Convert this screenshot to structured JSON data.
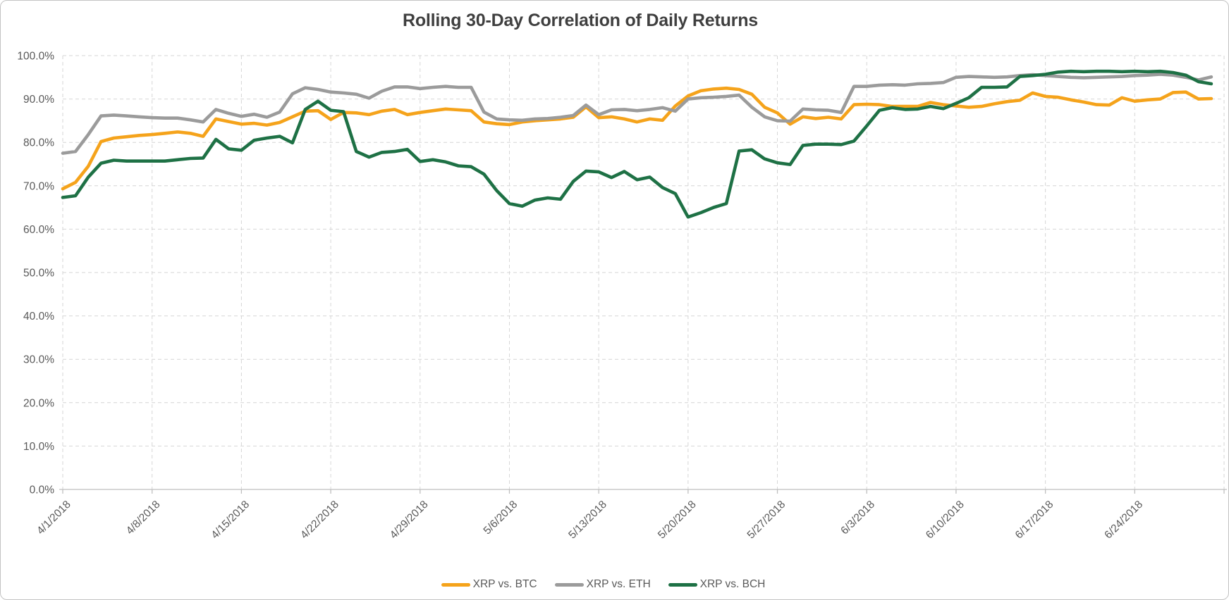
{
  "chart": {
    "title": "Rolling 30-Day Correlation of Daily Returns"
  },
  "chart_data": {
    "type": "line",
    "title": "Rolling 30-Day Correlation of Daily Returns",
    "x_tick_labels": [
      "4/1/2018",
      "4/8/2018",
      "4/15/2018",
      "4/22/2018",
      "4/29/2018",
      "5/6/2018",
      "5/13/2018",
      "5/20/2018",
      "5/27/2018",
      "6/3/2018",
      "6/10/2018",
      "6/17/2018",
      "6/24/2018"
    ],
    "x_range": [
      "4/1/2018",
      "6/30/2018"
    ],
    "x_tick_interval_days": 7,
    "points_per_series": 91,
    "y_tick_labels": [
      "100.0%",
      "90.0%",
      "80.0%",
      "70.0%",
      "60.0%",
      "50.0%",
      "40.0%",
      "30.0%",
      "20.0%",
      "10.0%",
      "0.0%"
    ],
    "ylim": [
      0,
      100
    ],
    "y_unit": "percent",
    "grid": "horizontal and vertical, dashed light gray",
    "legend_position": "bottom-center",
    "axis_text_color": "#595959",
    "gridline_color": "#d6d6d6",
    "axis_line_color": "#bfbfbf",
    "title_color": "#3f3f3f",
    "series": [
      {
        "name": "XRP vs. BTC",
        "color": "#F5A31B",
        "values": [
          69.3,
          70.8,
          74.5,
          80.2,
          81.0,
          81.3,
          81.6,
          81.8,
          82.1,
          82.4,
          82.1,
          81.4,
          85.4,
          84.8,
          84.2,
          84.4,
          84.0,
          84.6,
          85.9,
          87.2,
          87.3,
          85.3,
          86.9,
          86.8,
          86.4,
          87.2,
          87.6,
          86.4,
          86.9,
          87.3,
          87.7,
          87.5,
          87.3,
          84.7,
          84.3,
          84.1,
          84.7,
          85.0,
          85.2,
          85.4,
          85.8,
          88.2,
          85.7,
          85.9,
          85.4,
          84.7,
          85.4,
          85.1,
          88.4,
          90.7,
          91.9,
          92.3,
          92.5,
          92.2,
          91.1,
          88.1,
          86.8,
          84.2,
          85.9,
          85.5,
          85.8,
          85.4,
          88.7,
          88.8,
          88.7,
          88.3,
          88.3,
          88.3,
          89.2,
          88.7,
          88.4,
          88.1,
          88.3,
          88.9,
          89.4,
          89.7,
          91.4,
          90.6,
          90.4,
          89.8,
          89.3,
          88.7,
          88.6,
          90.3,
          89.5,
          89.8,
          90.0,
          91.5,
          91.6,
          90.0,
          90.1
        ]
      },
      {
        "name": "XRP vs. ETH",
        "color": "#9B9B9B",
        "values": [
          77.5,
          77.9,
          81.8,
          86.1,
          86.3,
          86.1,
          85.9,
          85.7,
          85.6,
          85.6,
          85.2,
          84.7,
          87.6,
          86.7,
          86.0,
          86.5,
          85.8,
          87.0,
          91.2,
          92.6,
          92.2,
          91.6,
          91.4,
          91.1,
          90.2,
          91.8,
          92.8,
          92.8,
          92.4,
          92.7,
          92.9,
          92.7,
          92.7,
          87.0,
          85.4,
          85.2,
          85.1,
          85.4,
          85.5,
          85.8,
          86.2,
          88.6,
          86.4,
          87.5,
          87.6,
          87.3,
          87.6,
          88.0,
          87.2,
          90.0,
          90.3,
          90.4,
          90.6,
          90.9,
          88.1,
          85.9,
          85.0,
          84.9,
          87.7,
          87.5,
          87.4,
          86.9,
          92.9,
          92.9,
          93.2,
          93.3,
          93.2,
          93.5,
          93.6,
          93.8,
          95.0,
          95.2,
          95.1,
          95.0,
          95.1,
          95.4,
          95.6,
          95.4,
          95.2,
          95.0,
          94.9,
          95.0,
          95.1,
          95.2,
          95.4,
          95.5,
          95.7,
          95.5,
          95.0,
          94.4,
          95.1
        ]
      },
      {
        "name": "XRP vs. BCH",
        "color": "#1E7145",
        "values": [
          67.3,
          67.7,
          72.0,
          75.2,
          75.9,
          75.7,
          75.7,
          75.7,
          75.7,
          76.0,
          76.3,
          76.4,
          80.7,
          78.5,
          78.2,
          80.5,
          81.0,
          81.4,
          79.9,
          87.6,
          89.5,
          87.4,
          87.1,
          77.9,
          76.6,
          77.7,
          77.9,
          78.4,
          75.6,
          76.0,
          75.5,
          74.6,
          74.4,
          72.7,
          68.9,
          65.9,
          65.3,
          66.7,
          67.2,
          66.9,
          71.0,
          73.4,
          73.2,
          71.9,
          73.3,
          71.4,
          72.0,
          69.6,
          68.2,
          62.8,
          63.8,
          65.0,
          65.9,
          78.0,
          78.3,
          76.2,
          75.3,
          74.9,
          79.3,
          79.6,
          79.6,
          79.5,
          80.3,
          83.8,
          87.4,
          88.0,
          87.6,
          87.7,
          88.3,
          87.8,
          89.0,
          90.3,
          92.7,
          92.7,
          92.8,
          95.2,
          95.4,
          95.7,
          96.2,
          96.4,
          96.3,
          96.4,
          96.4,
          96.3,
          96.4,
          96.3,
          96.4,
          96.1,
          95.5,
          94.0,
          93.5
        ]
      }
    ]
  }
}
